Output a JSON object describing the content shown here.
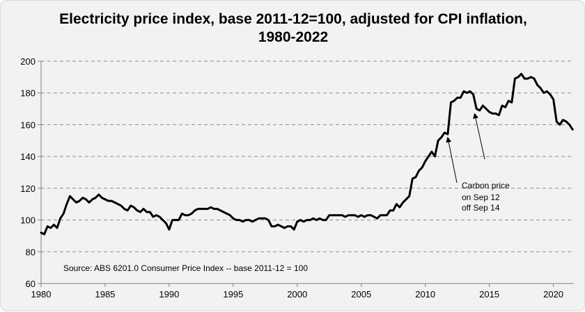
{
  "chart_data": {
    "type": "line",
    "title_line1": "Electricity price index, base 2011-12=100, adjusted for CPI inflation,",
    "title_line2": "1980-2022",
    "xlabel": "",
    "ylabel": "",
    "xlim": [
      1980,
      2021.6
    ],
    "ylim": [
      60,
      200
    ],
    "x_ticks": [
      1980,
      1985,
      1990,
      1995,
      2000,
      2005,
      2010,
      2015,
      2020
    ],
    "y_ticks": [
      60,
      80,
      100,
      120,
      140,
      160,
      180,
      200
    ],
    "grid": "horizontal-dashed",
    "legend": "none",
    "line_color": "#000000",
    "source_note": "Source:  ABS 6201.0 Consumer Price Index -- base 2011-12 = 100",
    "annotation": {
      "lines": [
        "Carbon price",
        "on Sep 12",
        "off Sep 14"
      ],
      "arrow_targets": [
        {
          "x": 2011.75,
          "y": 152
        },
        {
          "x": 2013.85,
          "y": 167
        }
      ]
    },
    "series": [
      {
        "x": [
          1980.0,
          1980.25,
          1980.5,
          1980.75,
          1981.0,
          1981.25,
          1981.5,
          1981.75,
          1982.0,
          1982.25,
          1982.5,
          1982.75,
          1983.0,
          1983.25,
          1983.5,
          1983.75,
          1984.0,
          1984.25,
          1984.5,
          1984.75,
          1985.0,
          1985.25,
          1985.5,
          1985.75,
          1986.0,
          1986.25,
          1986.5,
          1986.75,
          1987.0,
          1987.25,
          1987.5,
          1987.75,
          1988.0,
          1988.25,
          1988.5,
          1988.75,
          1989.0,
          1989.25,
          1989.5,
          1989.75,
          1990.0,
          1990.25,
          1990.5,
          1990.75,
          1991.0,
          1991.25,
          1991.5,
          1991.75,
          1992.0,
          1992.25,
          1992.5,
          1992.75,
          1993.0,
          1993.25,
          1993.5,
          1993.75,
          1994.0,
          1994.25,
          1994.5,
          1994.75,
          1995.0,
          1995.25,
          1995.5,
          1995.75,
          1996.0,
          1996.25,
          1996.5,
          1996.75,
          1997.0,
          1997.25,
          1997.5,
          1997.75,
          1998.0,
          1998.25,
          1998.5,
          1998.75,
          1999.0,
          1999.25,
          1999.5,
          1999.75,
          2000.0,
          2000.25,
          2000.5,
          2000.75,
          2001.0,
          2001.25,
          2001.5,
          2001.75,
          2002.0,
          2002.25,
          2002.5,
          2002.75,
          2003.0,
          2003.25,
          2003.5,
          2003.75,
          2004.0,
          2004.25,
          2004.5,
          2004.75,
          2005.0,
          2005.25,
          2005.5,
          2005.75,
          2006.0,
          2006.25,
          2006.5,
          2006.75,
          2007.0,
          2007.25,
          2007.5,
          2007.75,
          2008.0,
          2008.25,
          2008.5,
          2008.75,
          2009.0,
          2009.25,
          2009.5,
          2009.75,
          2010.0,
          2010.25,
          2010.5,
          2010.75,
          2011.0,
          2011.25,
          2011.5,
          2011.75,
          2012.0,
          2012.25,
          2012.5,
          2012.75,
          2013.0,
          2013.25,
          2013.5,
          2013.75,
          2014.0,
          2014.25,
          2014.5,
          2014.75,
          2015.0,
          2015.25,
          2015.5,
          2015.75,
          2016.0,
          2016.25,
          2016.5,
          2016.75,
          2017.0,
          2017.25,
          2017.5,
          2017.75,
          2018.0,
          2018.25,
          2018.5,
          2018.75,
          2019.0,
          2019.25,
          2019.5,
          2019.75,
          2020.0,
          2020.25,
          2020.5,
          2020.75,
          2021.0,
          2021.25,
          2021.5
        ],
        "values": [
          92,
          91,
          96,
          95,
          97,
          95,
          101,
          104,
          110,
          115,
          113,
          111,
          112,
          114,
          113,
          111,
          113,
          114,
          116,
          114,
          113,
          112,
          112,
          111,
          110,
          109,
          107,
          106,
          109,
          108,
          106,
          105,
          107,
          105,
          105,
          102,
          103,
          102,
          100,
          98,
          94,
          100,
          100,
          100,
          104,
          103,
          103,
          104,
          106,
          107,
          107,
          107,
          107,
          108,
          107,
          107,
          106,
          105,
          104,
          103,
          101,
          100,
          100,
          99,
          100,
          100,
          99,
          100,
          101,
          101,
          101,
          100,
          96,
          96,
          97,
          96,
          95,
          96,
          96,
          94,
          99,
          100,
          99,
          100,
          100,
          101,
          100,
          101,
          100,
          100,
          103,
          103,
          103,
          103,
          103,
          102,
          103,
          103,
          103,
          102,
          103,
          102,
          103,
          103,
          102,
          101,
          103,
          103,
          103,
          106,
          106,
          110,
          108,
          111,
          113,
          115,
          126,
          127,
          131,
          133,
          137,
          140,
          143,
          140,
          150,
          152,
          155,
          154,
          174,
          175,
          177,
          177,
          181,
          180,
          181,
          179,
          170,
          169,
          172,
          170,
          168,
          167,
          167,
          166,
          172,
          171,
          175,
          174,
          189,
          190,
          192,
          189,
          189,
          190,
          189,
          185,
          183,
          180,
          181,
          179,
          176,
          162,
          160,
          163,
          162,
          160,
          157
        ]
      }
    ]
  }
}
